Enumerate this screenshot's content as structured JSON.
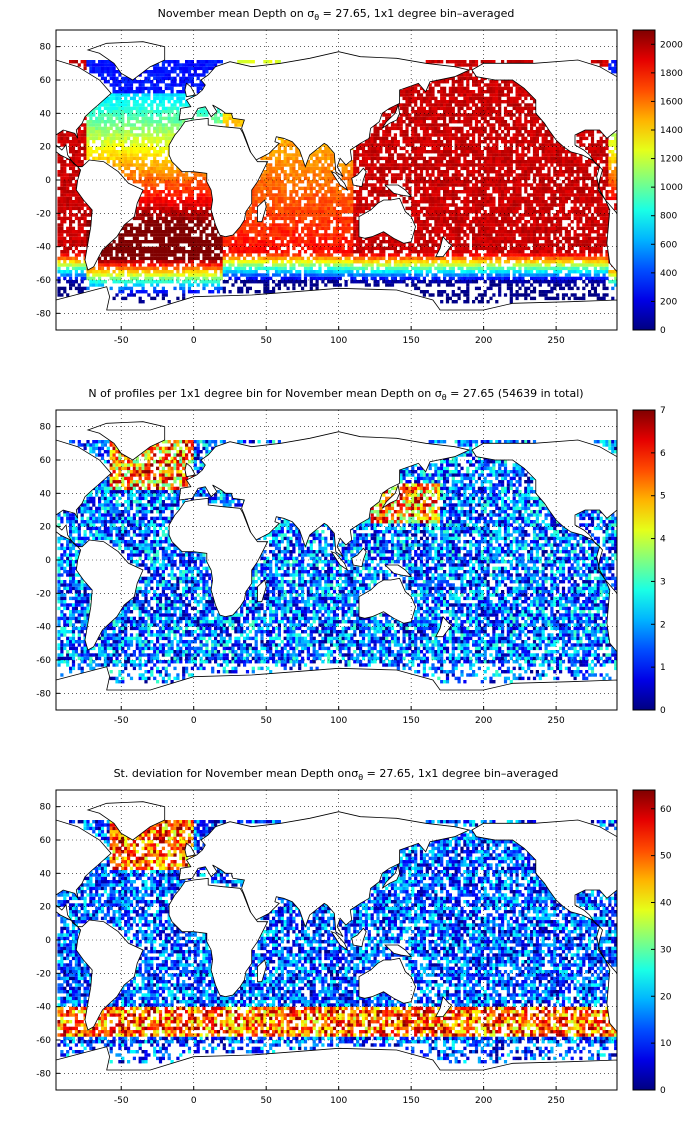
{
  "panels": [
    {
      "title_prefix": "November mean Depth on ",
      "sigma": "σ",
      "sigma_sub": "θ",
      "title_suffix": " = 27.65, 1x1 degree bin–averaged",
      "colormap": "jet",
      "colorbar": {
        "min": 0,
        "max": 2100,
        "ticks": [
          0,
          200,
          400,
          600,
          800,
          1000,
          1200,
          1400,
          1600,
          1800,
          2000
        ]
      },
      "field": "depth"
    },
    {
      "title_prefix": "N of profiles per 1x1 degree bin for November mean Depth on ",
      "sigma": "σ",
      "sigma_sub": "θ",
      "title_suffix": " = 27.65 (54639 in total)",
      "colormap": "jet",
      "colorbar": {
        "min": 0,
        "max": 7,
        "ticks": [
          0,
          1,
          2,
          3,
          4,
          5,
          6,
          7
        ]
      },
      "field": "count"
    },
    {
      "title_prefix": "St. deviation for November mean Depth on",
      "sigma": "σ",
      "sigma_sub": "θ",
      "title_suffix": " = 27.65, 1x1 degree bin–averaged",
      "colormap": "jet",
      "colorbar": {
        "min": 0,
        "max": 64,
        "ticks": [
          0,
          10,
          20,
          30,
          40,
          50,
          60
        ]
      },
      "field": "std"
    }
  ],
  "axes": {
    "x_range": [
      -95,
      292
    ],
    "y_range": [
      -90,
      90
    ],
    "x_ticks": [
      -50,
      0,
      50,
      100,
      150,
      200,
      250
    ],
    "y_ticks": [
      -80,
      -60,
      -40,
      -20,
      0,
      20,
      40,
      60,
      80
    ],
    "grid": "dotted"
  },
  "colors": {
    "land_outline": "#000000",
    "background": "#ffffff"
  }
}
